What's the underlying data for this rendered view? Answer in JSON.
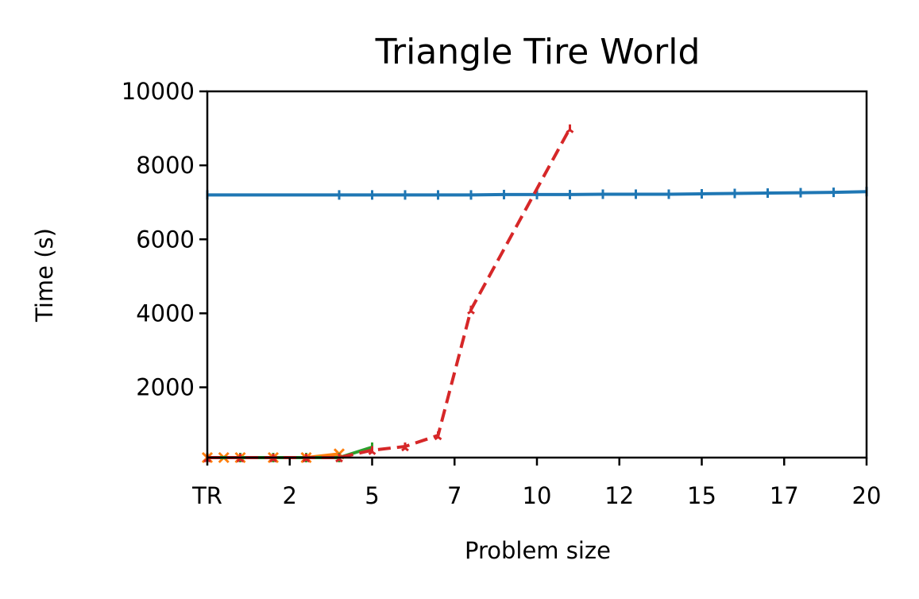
{
  "chart_data": {
    "type": "line",
    "title": "Triangle Tire World",
    "xlabel": "Problem size",
    "ylabel": "Time (s)",
    "xlim": [
      0,
      20
    ],
    "ylim": [
      100,
      10000
    ],
    "x_ticks": [
      {
        "x": 0,
        "label": "TR"
      },
      {
        "x": 2.5,
        "label": "2"
      },
      {
        "x": 5,
        "label": "5"
      },
      {
        "x": 7.5,
        "label": "7"
      },
      {
        "x": 10,
        "label": "10"
      },
      {
        "x": 12.5,
        "label": "12"
      },
      {
        "x": 15,
        "label": "15"
      },
      {
        "x": 17.5,
        "label": "17"
      },
      {
        "x": 20,
        "label": "20"
      }
    ],
    "y_ticks": [
      {
        "y": 2000,
        "label": "2000"
      },
      {
        "y": 4000,
        "label": "4000"
      },
      {
        "y": 6000,
        "label": "6000"
      },
      {
        "y": 8000,
        "label": "8000"
      },
      {
        "y": 10000,
        "label": "10000"
      }
    ],
    "grid": false,
    "legend": "none",
    "series": [
      {
        "color": "#1f77b4",
        "style": "solid",
        "marker": "vline",
        "x": [
          0,
          4,
          5,
          6,
          7,
          8,
          9,
          10,
          11,
          12,
          13,
          14,
          15,
          16,
          17,
          18,
          19,
          20
        ],
        "y": [
          7200,
          7200,
          7200,
          7200,
          7200,
          7200,
          7210,
          7210,
          7210,
          7220,
          7220,
          7220,
          7230,
          7240,
          7250,
          7260,
          7270,
          7290
        ]
      },
      {
        "color": "#ff7f0e",
        "style": "solid",
        "marker": "x",
        "x": [
          0,
          0.5,
          1,
          2,
          3,
          4
        ],
        "y": [
          100,
          100,
          100,
          100,
          100,
          200
        ]
      },
      {
        "color": "#2ca02c",
        "style": "solid",
        "marker": "vline",
        "x": [
          0,
          1,
          2,
          3,
          4,
          5
        ],
        "y": [
          100,
          100,
          100,
          100,
          100,
          380
        ]
      },
      {
        "color": "#d62728",
        "style": "dashed",
        "marker": "tri",
        "x": [
          0,
          1,
          2,
          3,
          4,
          5,
          6,
          7,
          8,
          11
        ],
        "y": [
          100,
          100,
          100,
          100,
          100,
          300,
          400,
          700,
          4100,
          9000
        ]
      }
    ]
  }
}
